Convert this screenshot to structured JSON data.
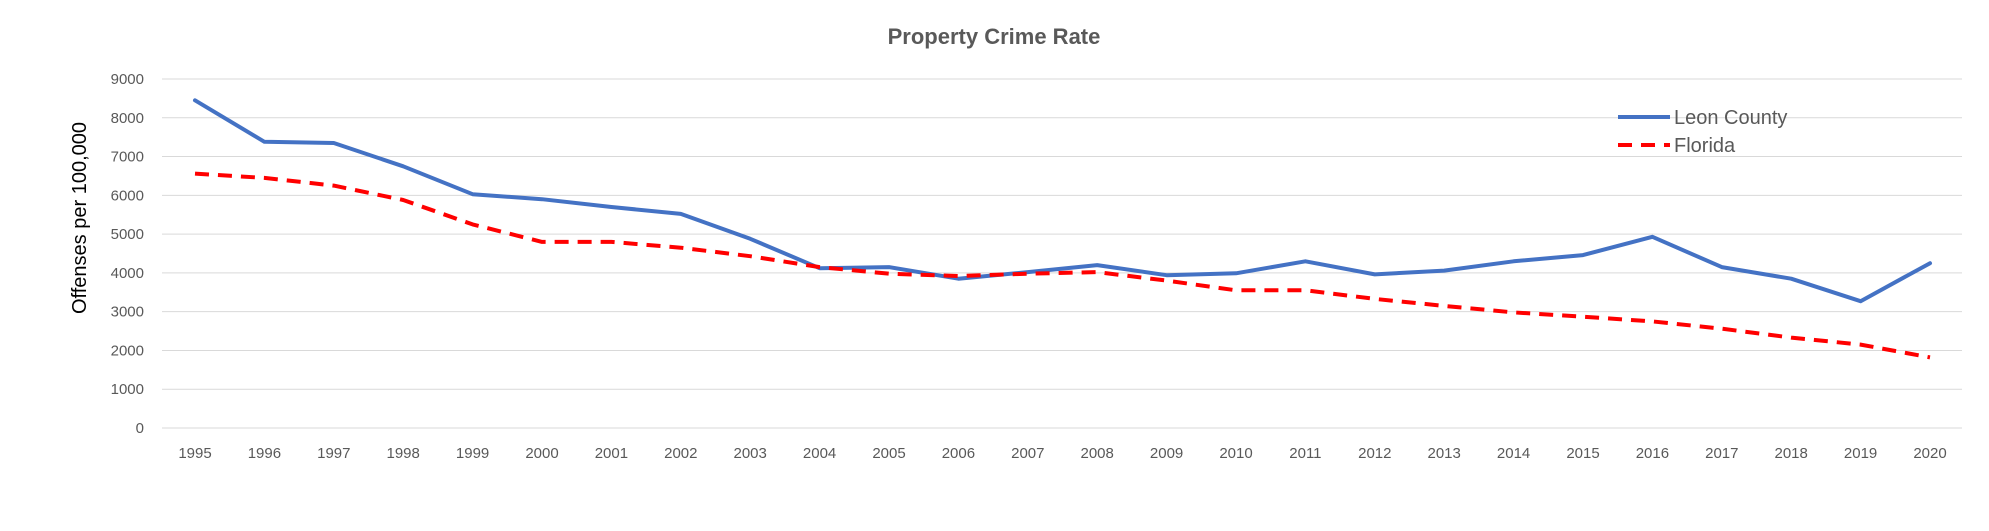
{
  "chart_data": {
    "type": "line",
    "title": "Property Crime Rate",
    "xlabel": "",
    "ylabel": "Offenses per 100,000",
    "ylim": [
      0,
      9000
    ],
    "yticks": [
      0,
      1000,
      2000,
      3000,
      4000,
      5000,
      6000,
      7000,
      8000,
      9000
    ],
    "grid": true,
    "legend_position": "top-right",
    "categories": [
      "1995",
      "1996",
      "1997",
      "1998",
      "1999",
      "2000",
      "2001",
      "2002",
      "2003",
      "2004",
      "2005",
      "2006",
      "2007",
      "2008",
      "2009",
      "2010",
      "2011",
      "2012",
      "2013",
      "2014",
      "2015",
      "2016",
      "2017",
      "2018",
      "2019",
      "2020"
    ],
    "series": [
      {
        "name": "Leon County",
        "color": "#4472c4",
        "style": "solid",
        "values": [
          8450,
          7380,
          7350,
          6750,
          6030,
          5900,
          5700,
          5520,
          4880,
          4120,
          4150,
          3850,
          4020,
          4200,
          3940,
          3990,
          4300,
          3960,
          4060,
          4300,
          4460,
          4930,
          4150,
          3850,
          3270,
          4250
        ]
      },
      {
        "name": "Florida",
        "color": "#ff0000",
        "style": "dashed",
        "values": [
          6560,
          6450,
          6250,
          5880,
          5250,
          4800,
          4800,
          4650,
          4430,
          4150,
          3980,
          3920,
          3980,
          4020,
          3800,
          3550,
          3550,
          3330,
          3150,
          2980,
          2870,
          2750,
          2560,
          2330,
          2150,
          1820
        ]
      }
    ]
  }
}
